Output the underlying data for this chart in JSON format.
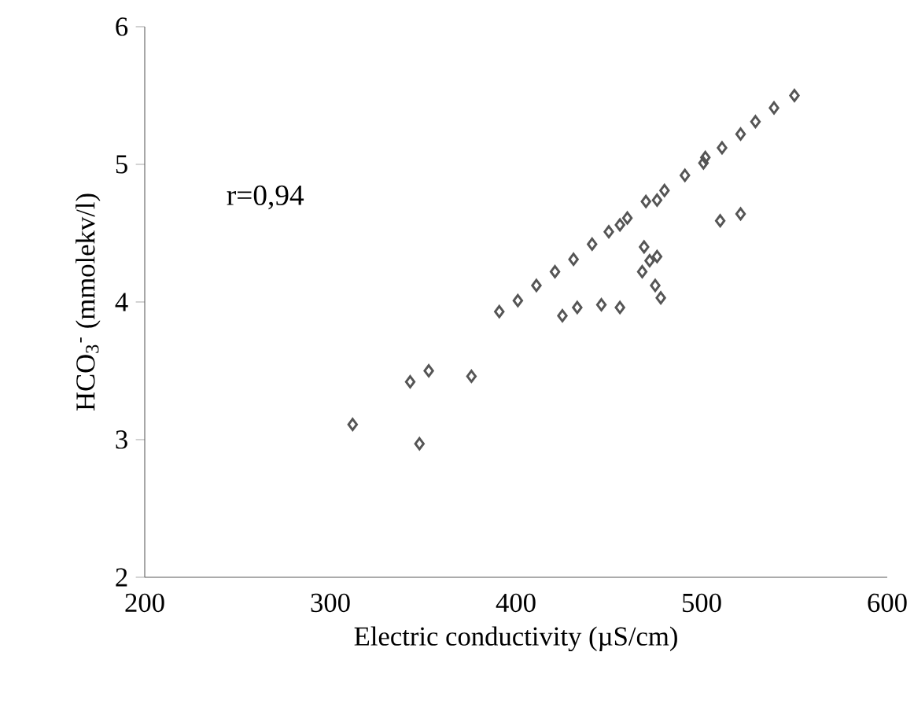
{
  "chart_data": {
    "type": "scatter",
    "xlabel": "Electric conductivity (µS/cm)",
    "ylabel": "HCO$_{3}$$^{-}$ (mmolekv/l)",
    "annotations": [
      "r=0,94"
    ],
    "xlim": [
      200,
      600
    ],
    "xticks": [
      200,
      300,
      400,
      500,
      600
    ],
    "ylim": [
      2,
      6
    ],
    "yticks": [
      2,
      3,
      4,
      5,
      6
    ],
    "grid": false,
    "marker": "diamond",
    "series": [
      {
        "color": "#555555",
        "x": [
          312,
          343,
          353,
          348,
          376,
          391,
          401,
          411,
          421,
          431,
          441,
          450,
          456,
          460,
          470,
          476,
          480,
          491,
          501,
          502,
          511,
          521,
          529,
          539,
          550,
          425,
          433,
          446,
          456,
          469,
          476,
          472,
          468,
          475,
          478,
          510,
          521
        ],
        "values": [
          3.11,
          3.42,
          3.5,
          2.97,
          3.46,
          3.93,
          4.01,
          4.12,
          4.22,
          4.31,
          4.42,
          4.51,
          4.56,
          4.61,
          4.73,
          4.74,
          4.81,
          4.92,
          5.01,
          5.05,
          5.12,
          5.22,
          5.31,
          5.41,
          5.5,
          3.9,
          3.96,
          3.98,
          3.96,
          4.4,
          4.33,
          4.3,
          4.22,
          4.12,
          4.03,
          4.59,
          4.64
        ]
      }
    ]
  }
}
